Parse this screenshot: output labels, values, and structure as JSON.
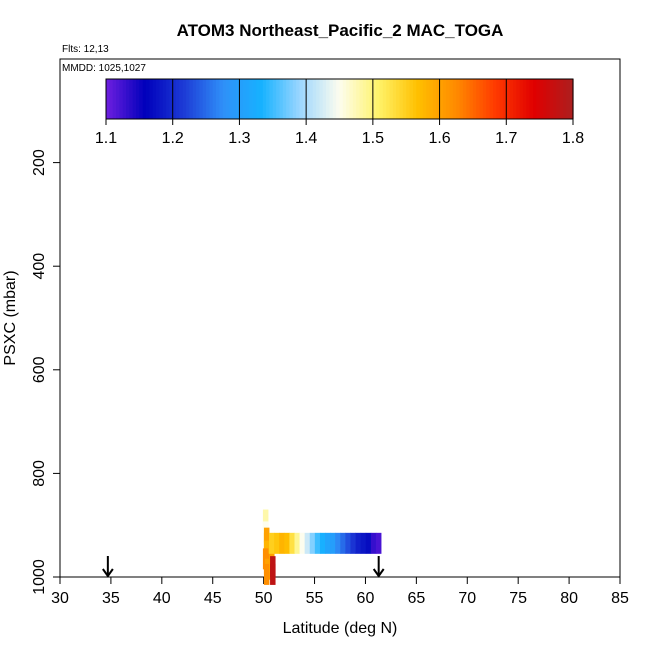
{
  "chart_data": {
    "type": "scatter",
    "title": "ATOM3 Northeast_Pacific_2 MAC_TOGA",
    "flights_note": "Flts: 12,13",
    "date_note": "MMDD: 1025,1027",
    "xlabel": "Latitude (deg N)",
    "ylabel": "PSXC (mbar)",
    "xlim": [
      30,
      85
    ],
    "ylim": [
      1000,
      0
    ],
    "y_reversed": true,
    "grid": false,
    "x_ticks": [
      30,
      35,
      40,
      45,
      50,
      55,
      60,
      65,
      70,
      75,
      80,
      85
    ],
    "y_ticks": [
      200,
      400,
      600,
      800,
      1000
    ],
    "colorbar": {
      "min": 1.1,
      "max": 1.8,
      "ticks": [
        1.1,
        1.2,
        1.3,
        1.4,
        1.5,
        1.6,
        1.7,
        1.8
      ],
      "stops": [
        "#6f1fe0",
        "#0000bb",
        "#1d3bd6",
        "#2f8ff8",
        "#17b2ff",
        "#9ed7ff",
        "#fdfdee",
        "#fff36a",
        "#ffc000",
        "#ff8a00",
        "#ff3a00",
        "#e00000",
        "#ac1f1f"
      ]
    },
    "points": [
      {
        "lat": 50.2,
        "p": 890,
        "v": 1.48
      },
      {
        "lat": 50.2,
        "p": 913,
        "v": 1.45
      },
      {
        "lat": 50.3,
        "p": 925,
        "v": 1.6
      },
      {
        "lat": 50.3,
        "p": 935,
        "v": 1.6
      },
      {
        "lat": 50.3,
        "p": 950,
        "v": 1.58
      },
      {
        "lat": 50.2,
        "p": 965,
        "v": 1.62
      },
      {
        "lat": 50.3,
        "p": 975,
        "v": 1.62
      },
      {
        "lat": 50.4,
        "p": 985,
        "v": 1.6
      },
      {
        "lat": 50.3,
        "p": 995,
        "v": 1.62
      },
      {
        "lat": 50.8,
        "p": 970,
        "v": 1.6
      },
      {
        "lat": 50.9,
        "p": 980,
        "v": 1.78
      },
      {
        "lat": 50.9,
        "p": 995,
        "v": 1.78
      },
      {
        "lat": 50.8,
        "p": 935,
        "v": 1.55
      },
      {
        "lat": 51.3,
        "p": 935,
        "v": 1.56
      },
      {
        "lat": 51.8,
        "p": 935,
        "v": 1.58
      },
      {
        "lat": 52.3,
        "p": 935,
        "v": 1.57
      },
      {
        "lat": 52.8,
        "p": 935,
        "v": 1.53
      },
      {
        "lat": 53.3,
        "p": 935,
        "v": 1.49
      },
      {
        "lat": 53.8,
        "p": 935,
        "v": 1.45
      },
      {
        "lat": 54.3,
        "p": 935,
        "v": 1.42
      },
      {
        "lat": 54.8,
        "p": 935,
        "v": 1.38
      },
      {
        "lat": 55.3,
        "p": 935,
        "v": 1.35
      },
      {
        "lat": 55.8,
        "p": 935,
        "v": 1.33
      },
      {
        "lat": 56.3,
        "p": 935,
        "v": 1.31
      },
      {
        "lat": 56.8,
        "p": 935,
        "v": 1.3
      },
      {
        "lat": 57.3,
        "p": 935,
        "v": 1.27
      },
      {
        "lat": 57.8,
        "p": 935,
        "v": 1.25
      },
      {
        "lat": 58.3,
        "p": 935,
        "v": 1.23
      },
      {
        "lat": 58.8,
        "p": 935,
        "v": 1.21
      },
      {
        "lat": 59.3,
        "p": 935,
        "v": 1.19
      },
      {
        "lat": 59.8,
        "p": 935,
        "v": 1.18
      },
      {
        "lat": 60.3,
        "p": 935,
        "v": 1.17
      },
      {
        "lat": 60.8,
        "p": 935,
        "v": 1.13
      },
      {
        "lat": 61.3,
        "p": 935,
        "v": 1.12
      }
    ],
    "arrows": [
      {
        "lat": 34.7
      },
      {
        "lat": 61.3
      }
    ]
  }
}
